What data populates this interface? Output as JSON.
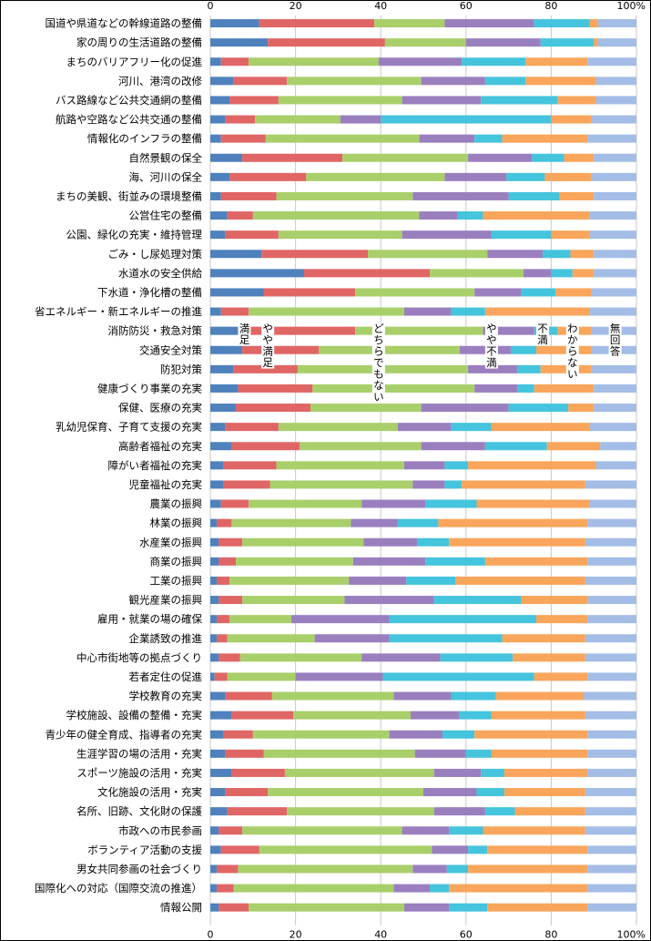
{
  "chart_data": {
    "type": "bar",
    "orientation": "horizontal",
    "stacked": true,
    "xlim": [
      0,
      100
    ],
    "x_ticks": [
      "0",
      "20",
      "40",
      "60",
      "80",
      "100%"
    ],
    "grid": true,
    "colors": [
      "#4f81bd",
      "#e06666",
      "#a9cf6a",
      "#9a7fbf",
      "#45c4dd",
      "#f9a55b",
      "#a4bde6"
    ],
    "series": [
      {
        "name": "満足",
        "color": "#4f81bd"
      },
      {
        "name": "やや満足",
        "color": "#e06666"
      },
      {
        "name": "どちらでもない",
        "color": "#a9cf6a"
      },
      {
        "name": "やや不満",
        "color": "#9a7fbf"
      },
      {
        "name": "不満",
        "color": "#45c4dd"
      },
      {
        "name": "わからない",
        "color": "#f9a55b"
      },
      {
        "name": "無回答",
        "color": "#a4bde6"
      }
    ],
    "categories": [
      "国道や県道などの幹線道路の整備",
      "家の周りの生活道路の整備",
      "まちのバリアフリー化の促進",
      "河川、港湾の改修",
      "バス路線など公共交通網の整備",
      "航路や空路など公共交通の整備",
      "情報化のインフラの整備",
      "自然景観の保全",
      "海、河川の保全",
      "まちの美観、街並みの環境整備",
      "公営住宅の整備",
      "公園、緑化の充実・維持管理",
      "ごみ・し尿処理対策",
      "水道水の安全供給",
      "下水道・浄化槽の整備",
      "省エネルギー・新エネルギーの推進",
      "消防防災・救急対策",
      "交通安全対策",
      "防犯対策",
      "健康づくり事業の充実",
      "保健、医療の充実",
      "乳幼児保育、子育て支援の充実",
      "高齢者福祉の充実",
      "障がい者福祉の充実",
      "児童福祉の充実",
      "農業の振興",
      "林業の振興",
      "水産業の振興",
      "商業の振興",
      "工業の振興",
      "観光産業の振興",
      "雇用・就業の場の確保",
      "企業誘致の推進",
      "中心市街地等の拠点づくり",
      "若者定住の促進",
      "学校教育の充実",
      "学校施設、設備の整備・充実",
      "青少年の健全育成、指導者の充実",
      "生涯学習の場の活用・充実",
      "スポーツ施設の活用・充実",
      "文化施設の活用・充実",
      "名所、旧跡、文化財の保護",
      "市政への市民参画",
      "ボランティア活動の支援",
      "男女共同参画の社会づくり",
      "国際化への対応（国際交流の推進）",
      "情報公開"
    ],
    "values": [
      [
        11.5,
        27,
        16.5,
        21,
        13,
        2,
        9
      ],
      [
        13.5,
        27.5,
        19,
        17.5,
        12.5,
        1,
        9
      ],
      [
        2.5,
        6.5,
        30.5,
        19.5,
        15,
        14.5,
        11.5
      ],
      [
        5.5,
        12.5,
        31.5,
        15,
        9.5,
        16.5,
        9.5
      ],
      [
        4.5,
        11.5,
        29,
        18.5,
        18,
        9,
        9.5
      ],
      [
        3.5,
        7,
        20,
        9.5,
        40,
        9.5,
        10.5
      ],
      [
        2.5,
        10.5,
        36,
        13,
        6.5,
        20,
        11.5
      ],
      [
        7.5,
        23.5,
        29.5,
        15,
        7.5,
        7,
        10
      ],
      [
        4.5,
        18,
        32.5,
        14.5,
        9,
        11,
        10.5
      ],
      [
        2.5,
        13,
        32,
        22.5,
        12,
        8,
        10
      ],
      [
        4,
        6,
        39,
        9,
        6,
        25,
        11
      ],
      [
        3.5,
        12.5,
        29,
        21,
        14,
        9,
        11
      ],
      [
        12,
        25,
        28,
        13,
        6.5,
        5.5,
        10
      ],
      [
        22,
        29.5,
        22,
        6.5,
        5,
        5,
        10
      ],
      [
        12.5,
        21.5,
        28,
        11,
        8,
        8.5,
        10.5
      ],
      [
        2.5,
        6.5,
        36.5,
        11,
        8,
        24.5,
        11
      ],
      [
        7.5,
        26.5,
        30,
        12,
        5.5,
        8,
        10.5
      ],
      [
        7.5,
        18,
        33,
        12,
        6,
        13,
        10.5
      ],
      [
        5.5,
        15,
        40,
        11.5,
        5.5,
        12,
        10.5
      ],
      [
        6.5,
        17.5,
        38,
        10,
        4,
        14,
        10
      ],
      [
        6,
        17.5,
        26,
        20.5,
        14,
        6,
        10
      ],
      [
        3.5,
        12.5,
        28,
        12.5,
        9.5,
        23,
        11
      ],
      [
        5,
        16,
        28.5,
        15,
        14.5,
        12.5,
        8.5
      ],
      [
        3,
        12.5,
        30,
        9.5,
        5.5,
        30,
        9.5
      ],
      [
        3,
        11,
        33.5,
        7.5,
        4,
        29,
        12
      ],
      [
        2.5,
        6.5,
        26.5,
        15,
        12,
        26.5,
        11
      ],
      [
        1.5,
        3.5,
        28,
        11,
        9.5,
        35,
        11.5
      ],
      [
        2,
        5.5,
        28.5,
        12.5,
        7.5,
        32,
        12
      ],
      [
        2,
        4,
        27.5,
        17,
        14,
        24,
        11.5
      ],
      [
        1.5,
        3,
        28,
        13.5,
        11.5,
        30.5,
        12
      ],
      [
        2,
        5.5,
        24,
        21,
        20.5,
        15.5,
        11.5
      ],
      [
        1.5,
        3,
        14.5,
        23,
        34.5,
        12,
        11.5
      ],
      [
        1.5,
        2.5,
        20.5,
        17.5,
        26.5,
        19.5,
        12
      ],
      [
        2,
        5,
        28.5,
        18.5,
        17,
        17,
        12
      ],
      [
        1,
        3,
        16,
        20.5,
        35.5,
        12.5,
        11.5
      ],
      [
        3.5,
        11,
        28.5,
        13.5,
        10.5,
        20.5,
        12.5
      ],
      [
        5,
        14.5,
        27.5,
        11.5,
        7.5,
        22,
        12
      ],
      [
        3,
        7,
        32,
        12.5,
        7.5,
        26.5,
        11.5
      ],
      [
        3.5,
        9,
        35.5,
        12,
        6,
        22.5,
        11.5
      ],
      [
        5,
        12.5,
        35,
        11,
        5.5,
        19.5,
        11.5
      ],
      [
        3.5,
        10,
        36.5,
        12.5,
        6.5,
        19,
        12
      ],
      [
        4,
        14,
        34.5,
        12,
        7,
        16.5,
        12
      ],
      [
        2,
        5.5,
        37.5,
        11,
        8,
        24,
        12
      ],
      [
        2.5,
        9,
        40.5,
        8.5,
        4.5,
        23.5,
        11.5
      ],
      [
        1.5,
        5,
        41,
        8,
        5,
        28,
        11.5
      ],
      [
        1.5,
        4,
        37.5,
        8.5,
        4.5,
        32.5,
        11.5
      ],
      [
        2,
        7,
        36.5,
        10.5,
        9,
        23.5,
        11.5
      ]
    ]
  }
}
